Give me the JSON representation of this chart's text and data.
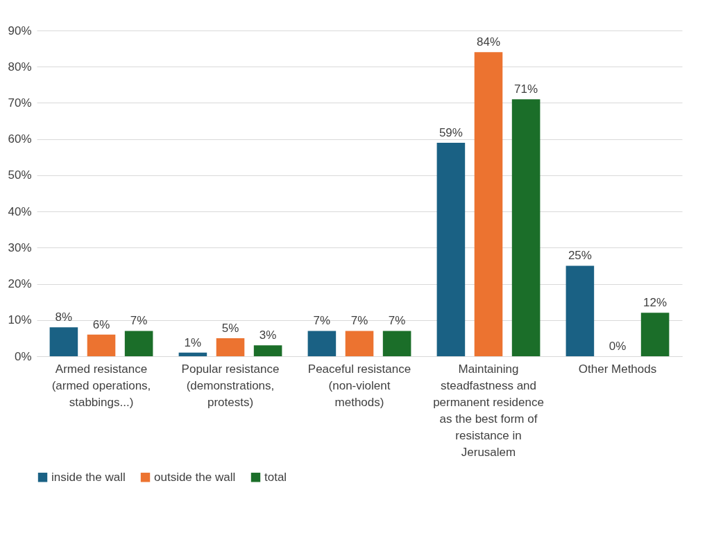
{
  "chart_data": {
    "type": "bar",
    "categories": [
      "Armed resistance (armed operations, stabbings...)",
      "Popular resistance (demonstrations, protests)",
      "Peaceful resistance (non-violent methods)",
      "Maintaining steadfastness and permanent residence as the best form of resistance in Jerusalem",
      "Other Methods"
    ],
    "series": [
      {
        "name": "inside the wall",
        "color": "#1a6184",
        "values": [
          8,
          1,
          7,
          59,
          25
        ],
        "value_labels": [
          "8%",
          "1%",
          "7%",
          "59%",
          "25%"
        ]
      },
      {
        "name": "outside the wall",
        "color": "#ec7330",
        "values": [
          6,
          5,
          7,
          84,
          0
        ],
        "value_labels": [
          "6%",
          "5%",
          "7%",
          "84%",
          "0%"
        ]
      },
      {
        "name": "total",
        "color": "#1b6e29",
        "values": [
          7,
          3,
          7,
          71,
          12
        ],
        "value_labels": [
          "7%",
          "3%",
          "7%",
          "71%",
          "12%"
        ]
      }
    ],
    "ylim": [
      0,
      90
    ],
    "yticks": [
      {
        "value": 0,
        "label": "0%"
      },
      {
        "value": 10,
        "label": "10%"
      },
      {
        "value": 20,
        "label": "20%"
      },
      {
        "value": 30,
        "label": "30%"
      },
      {
        "value": 40,
        "label": "40%"
      },
      {
        "value": 50,
        "label": "50%"
      },
      {
        "value": 60,
        "label": "60%"
      },
      {
        "value": 70,
        "label": "70%"
      },
      {
        "value": 80,
        "label": "80%"
      },
      {
        "value": 90,
        "label": "90%"
      }
    ],
    "grid": "y",
    "legend": "bottom"
  }
}
